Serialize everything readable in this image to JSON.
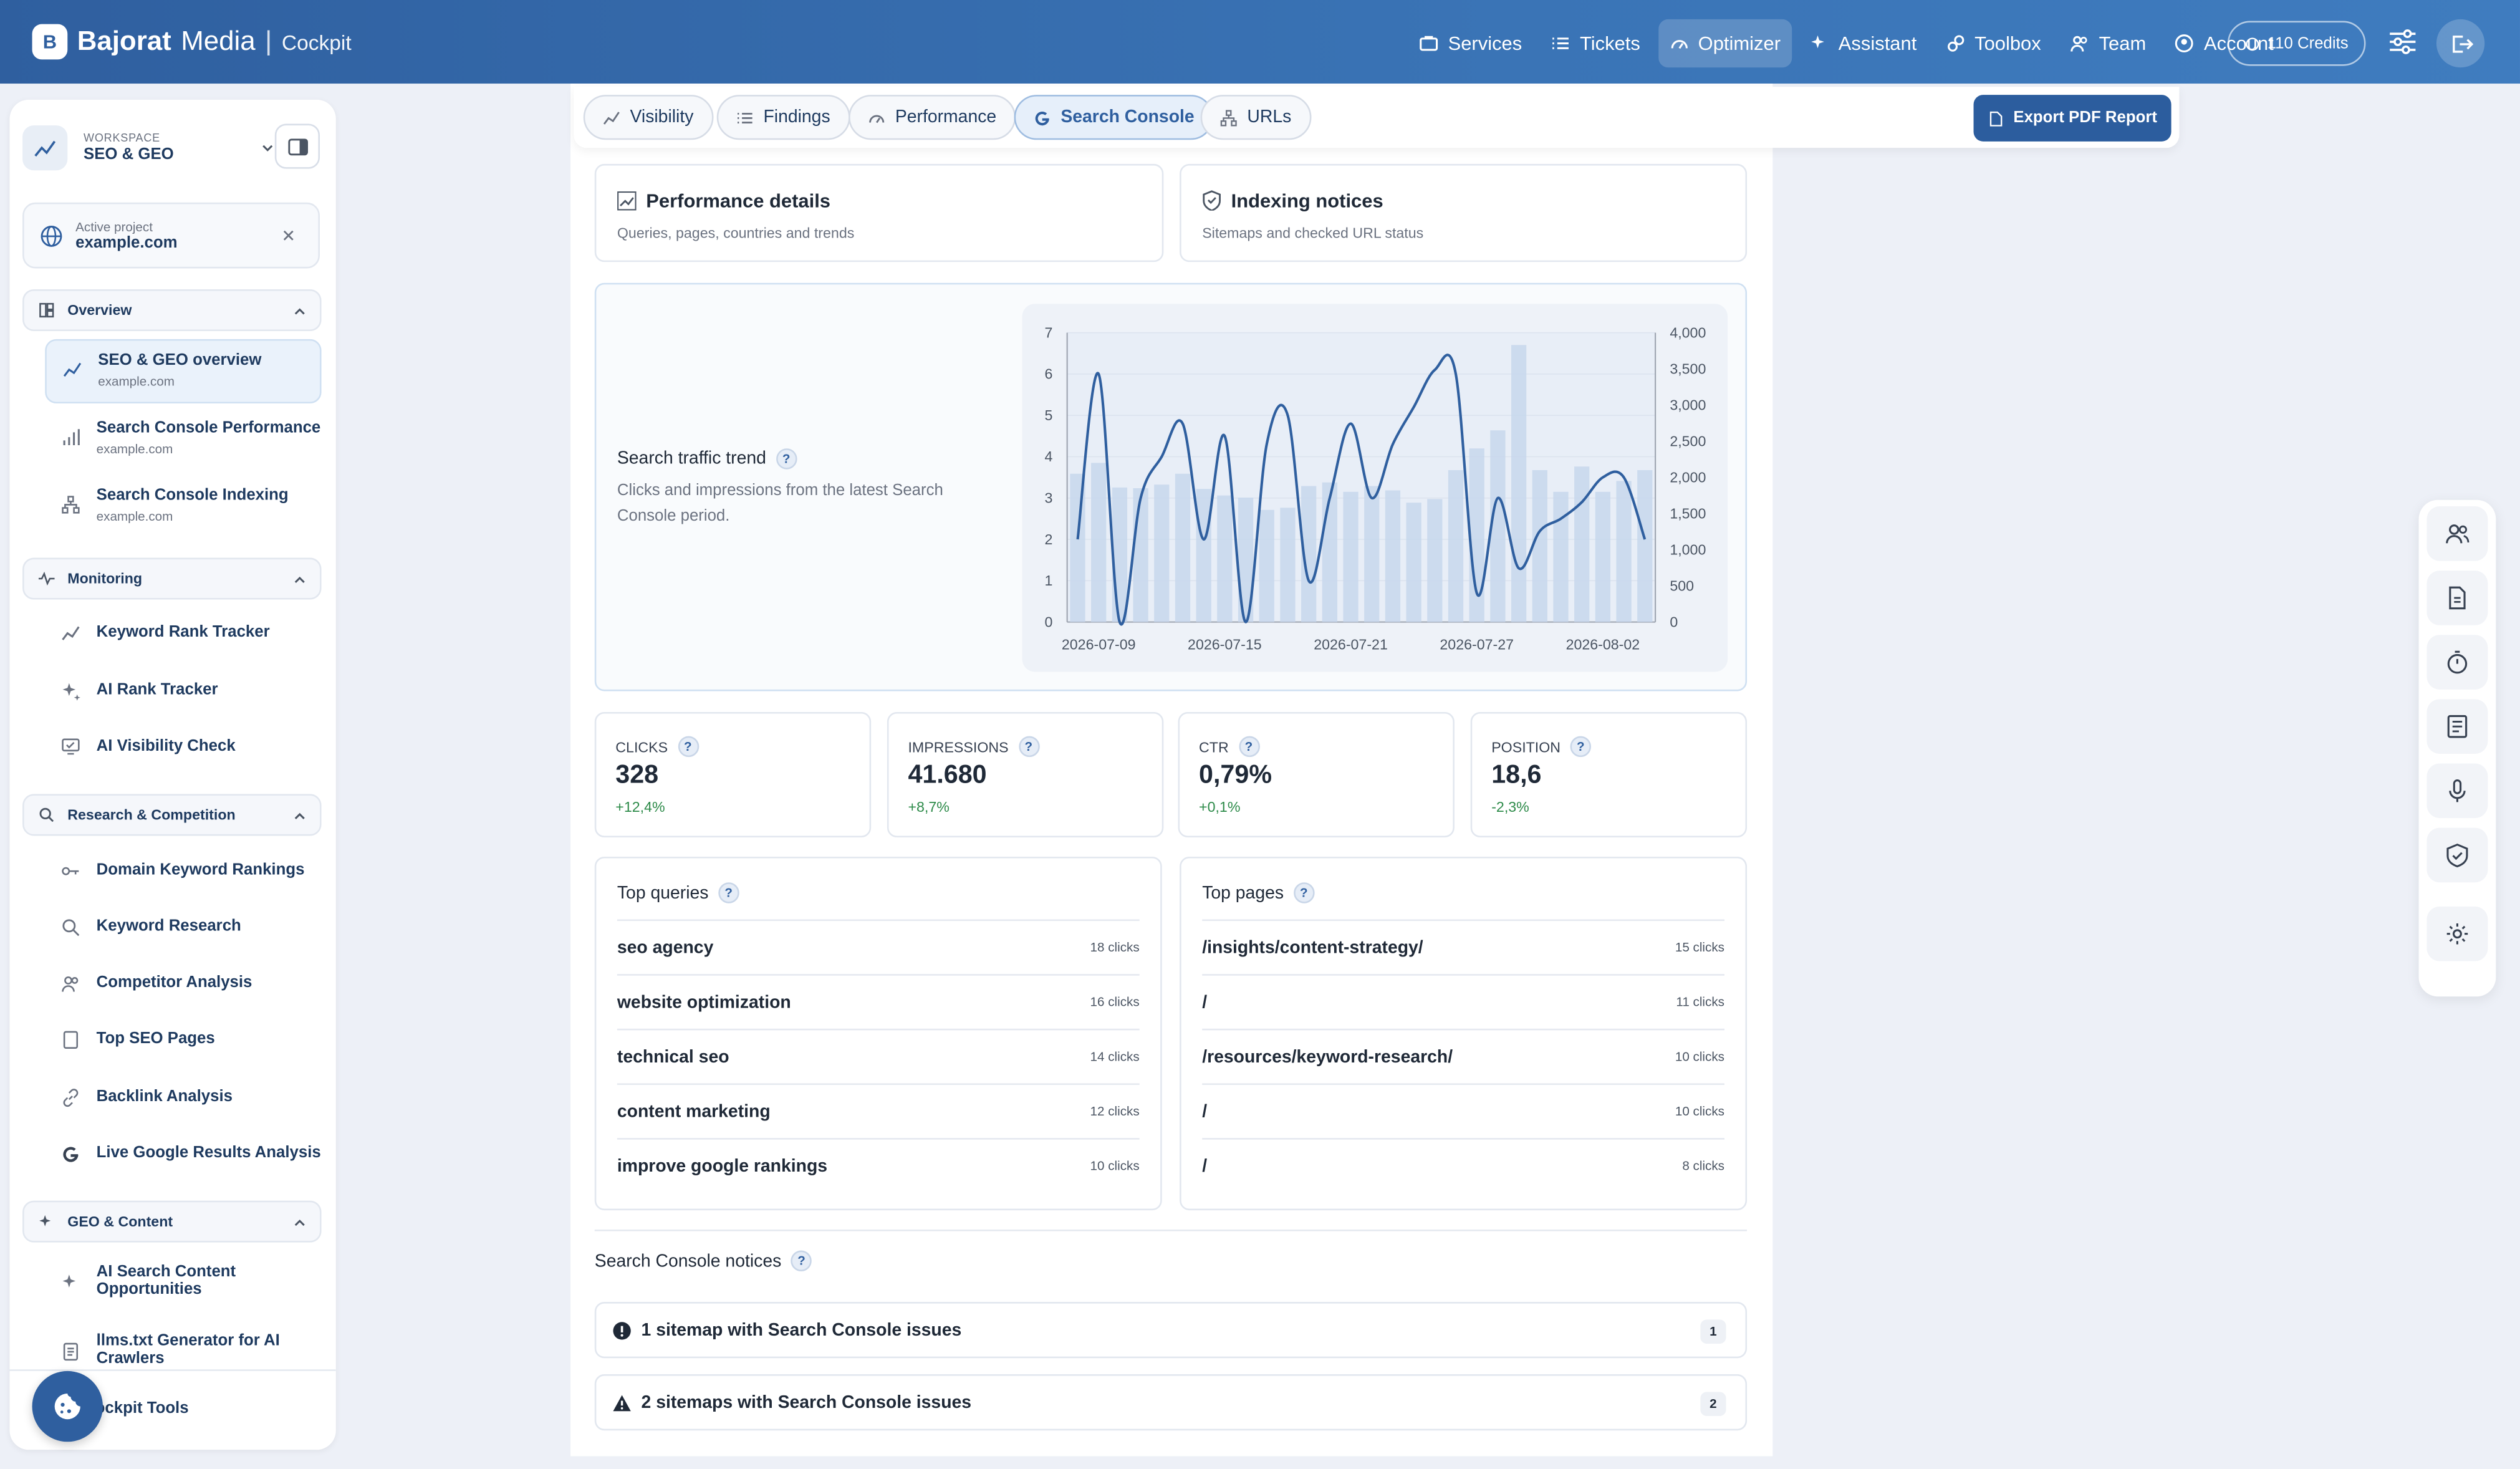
{
  "app": {
    "logo_mark": "B",
    "brand_bold": "Bajorat",
    "brand_rest": "Media",
    "brand_sub": "Cockpit"
  },
  "nav": {
    "items": [
      {
        "label": "Services",
        "icon": "briefcase-icon"
      },
      {
        "label": "Tickets",
        "icon": "list-icon"
      },
      {
        "label": "Optimizer",
        "icon": "gauge-icon",
        "active": true
      },
      {
        "label": "Assistant",
        "icon": "sparkle-icon"
      },
      {
        "label": "Toolbox",
        "icon": "toolbox-icon"
      },
      {
        "label": "Team",
        "icon": "users-icon"
      },
      {
        "label": "Account",
        "icon": "user-circle-icon"
      }
    ],
    "credits": "110 Credits"
  },
  "sidebar": {
    "workspace_label": "WORKSPACE",
    "workspace_name": "SEO & GEO",
    "project_label": "Active project",
    "project_name": "example.com",
    "sections": {
      "overview": "Overview",
      "monitoring": "Monitoring",
      "research": "Research & Competition",
      "geo": "GEO & Content"
    },
    "overview_items": [
      {
        "label": "SEO & GEO overview",
        "sub": "example.com"
      },
      {
        "label": "Search Console Performance",
        "sub": "example.com"
      },
      {
        "label": "Search Console Indexing",
        "sub": "example.com"
      }
    ],
    "monitoring_items": [
      "Keyword Rank Tracker",
      "AI Rank Tracker",
      "AI Visibility Check"
    ],
    "research_items": [
      "Domain Keyword Rankings",
      "Keyword Research",
      "Competitor Analysis",
      "Top SEO Pages",
      "Backlink Analysis",
      "Live Google Results Analysis"
    ],
    "geo_items": [
      "AI Search Content Opportunities",
      "llms.txt Generator for AI Crawlers"
    ],
    "footer_item": "Cockpit Tools"
  },
  "tabs": [
    {
      "label": "Visibility",
      "icon": "chart-line-icon"
    },
    {
      "label": "Findings",
      "icon": "list-icon"
    },
    {
      "label": "Performance",
      "icon": "gauge-icon"
    },
    {
      "label": "Search Console",
      "icon": "google-icon",
      "active": true
    },
    {
      "label": "URLs",
      "icon": "sitemap-icon"
    }
  ],
  "export_label": "Export PDF Report",
  "cards": {
    "performance": {
      "title": "Performance details",
      "sub": "Queries, pages, countries and trends"
    },
    "indexing": {
      "title": "Indexing notices",
      "sub": "Sitemaps and checked URL status"
    }
  },
  "trend": {
    "title": "Search traffic trend",
    "sub": "Clicks and impressions from the latest Search Console period."
  },
  "info_glyph": "?",
  "chart_data": {
    "type": "bar+line",
    "x_ticks": [
      "2026-07-09",
      "2026-07-15",
      "2026-07-21",
      "2026-07-27",
      "2026-08-02"
    ],
    "start_date": "2026-07-08",
    "y_left": {
      "min": 0,
      "max": 7,
      "ticks": [
        "0",
        "1",
        "2",
        "3",
        "4",
        "5",
        "6",
        "7"
      ]
    },
    "y_right": {
      "min": 0,
      "max": 4000,
      "ticks": [
        "0",
        "500",
        "1,000",
        "1,500",
        "2,000",
        "2,500",
        "3,000",
        "3,500",
        "4,000"
      ]
    },
    "impressions": [
      2050,
      2200,
      1860,
      1850,
      1900,
      2050,
      1840,
      1750,
      1720,
      1550,
      1580,
      1880,
      1930,
      1800,
      1880,
      1820,
      1650,
      1700,
      2100,
      2400,
      2650,
      3830,
      2100,
      1800,
      2150,
      1800,
      1950,
      2100
    ],
    "clicks": [
      2,
      6,
      0,
      3,
      4,
      4.8,
      2,
      4.5,
      0,
      4.3,
      5,
      1,
      3,
      4.8,
      3,
      4.3,
      5.2,
      6.1,
      6,
      0.7,
      3,
      1.3,
      2.2,
      2.5,
      2.9,
      3.5,
      3.5,
      2
    ]
  },
  "metrics": [
    {
      "label": "CLICKS",
      "value": "328",
      "delta": "+12,4%"
    },
    {
      "label": "IMPRESSIONS",
      "value": "41.680",
      "delta": "+8,7%"
    },
    {
      "label": "CTR",
      "value": "0,79%",
      "delta": "+0,1%"
    },
    {
      "label": "POSITION",
      "value": "18,6",
      "delta": "-2,3%"
    }
  ],
  "top_queries": {
    "title": "Top queries",
    "rows": [
      {
        "name": "seo agency",
        "value": "18 clicks"
      },
      {
        "name": "website optimization",
        "value": "16 clicks"
      },
      {
        "name": "technical seo",
        "value": "14 clicks"
      },
      {
        "name": "content marketing",
        "value": "12 clicks"
      },
      {
        "name": "improve google rankings",
        "value": "10 clicks"
      }
    ]
  },
  "top_pages": {
    "title": "Top pages",
    "rows": [
      {
        "name": "/insights/content-strategy/",
        "value": "15 clicks"
      },
      {
        "name": "/",
        "value": "11 clicks"
      },
      {
        "name": "/resources/keyword-research/",
        "value": "10 clicks"
      },
      {
        "name": "/",
        "value": "10 clicks"
      },
      {
        "name": "/",
        "value": "8 clicks"
      }
    ]
  },
  "notices": {
    "title": "Search Console notices",
    "items": [
      {
        "label": "1 sitemap with Search Console issues",
        "count": "1",
        "icon": "exclamation-circle-icon"
      },
      {
        "label": "2 sitemaps with Search Console issues",
        "count": "2",
        "icon": "warning-triangle-icon"
      }
    ]
  },
  "right_toolbar": [
    "users-icon",
    "document-icon",
    "timer-icon",
    "report-icon",
    "microphone-icon",
    "shield-check-icon",
    "gear-icon"
  ],
  "colors": {
    "brand": "#2f5f9f",
    "positive": "#2e8b4a",
    "line": "#2f5f9f",
    "bars": "#c7d7ec"
  }
}
